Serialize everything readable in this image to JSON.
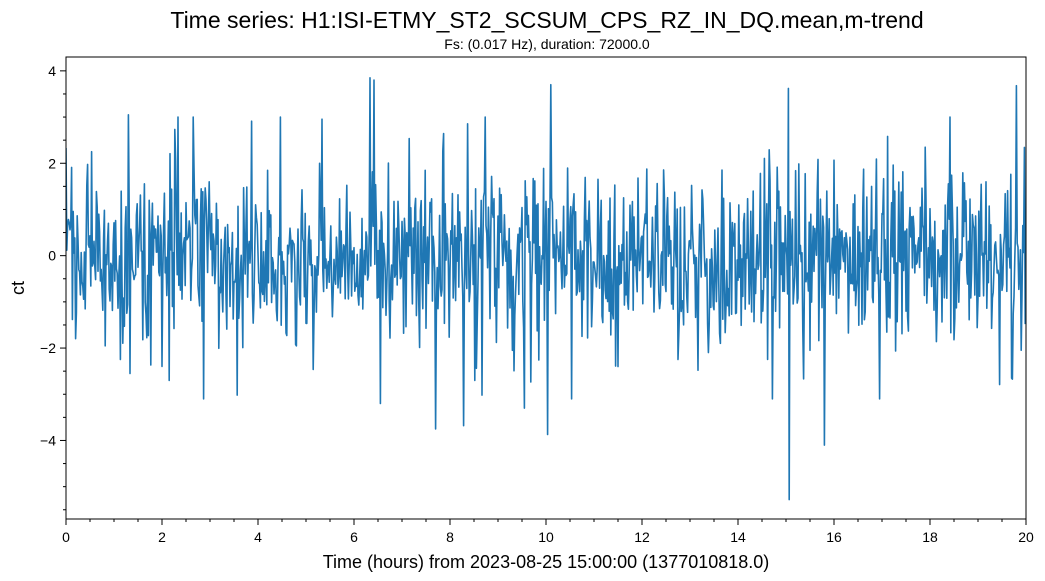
{
  "chart_data": {
    "type": "line",
    "title": "Time series: H1:ISI-ETMY_ST2_SCSUM_CPS_RZ_IN_DQ.mean,m-trend",
    "subtitle": "Fs: (0.017 Hz), duration: 72000.0",
    "xlabel": "Time (hours) from 2023-08-25 15:00:00 (1377010818.0)",
    "ylabel": "ct",
    "xlim": [
      0,
      20
    ],
    "ylim": [
      -5.7,
      4.3
    ],
    "xticks": [
      0,
      2,
      4,
      6,
      8,
      10,
      12,
      14,
      16,
      18,
      20
    ],
    "xtick_labels": [
      "0",
      "2",
      "4",
      "6",
      "8",
      "10",
      "12",
      "14",
      "16",
      "18",
      "20"
    ],
    "yticks": [
      -4,
      -2,
      0,
      2,
      4
    ],
    "ytick_labels": [
      "−4",
      "−2",
      "0",
      "2",
      "4"
    ],
    "grid": false,
    "line_color": "#1f77b4",
    "sample_rate_hz": 0.017,
    "duration_s": 72000,
    "n_points": 1200,
    "series": [
      {
        "x_start": 0,
        "x_step": 0.0166667,
        "std": 0.9,
        "seed": 1377010818,
        "extremes": [
          {
            "x": 1.3,
            "y": 3.05
          },
          {
            "x": 1.33,
            "y": -2.55
          },
          {
            "x": 2.15,
            "y": -2.7
          },
          {
            "x": 6.33,
            "y": 3.85
          },
          {
            "x": 6.42,
            "y": 3.8
          },
          {
            "x": 6.55,
            "y": -3.2
          },
          {
            "x": 7.7,
            "y": -3.75
          },
          {
            "x": 8.28,
            "y": -3.68
          },
          {
            "x": 9.55,
            "y": -3.3
          },
          {
            "x": 10.03,
            "y": -3.87
          },
          {
            "x": 10.1,
            "y": 3.7
          },
          {
            "x": 15.05,
            "y": 3.62
          },
          {
            "x": 15.07,
            "y": -5.28
          },
          {
            "x": 15.8,
            "y": -4.1
          },
          {
            "x": 19.8,
            "y": 3.68
          },
          {
            "x": 19.7,
            "y": -2.65
          }
        ]
      }
    ]
  }
}
